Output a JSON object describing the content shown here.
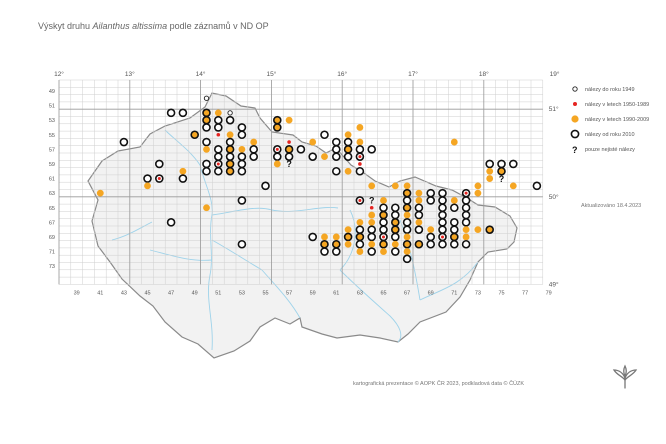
{
  "title": {
    "prefix": "Výskyt druhu",
    "species": "Ailanthus altissima",
    "suffix": "podle záznamů v ND OP"
  },
  "map": {
    "top_meridian_labels": [
      "12°",
      "13°",
      "14°",
      "15°",
      "16°",
      "17°",
      "18°",
      "19°"
    ],
    "right_parallel_labels": [
      "51°",
      "50°",
      "49°"
    ],
    "left_row_labels": [
      "49",
      "51",
      "53",
      "55",
      "57",
      "59",
      "61",
      "63",
      "65",
      "67",
      "69",
      "71",
      "73"
    ],
    "bottom_col_labels": [
      "39",
      "41",
      "43",
      "45",
      "47",
      "49",
      "51",
      "53",
      "55",
      "57",
      "59",
      "61",
      "63",
      "65",
      "67",
      "69",
      "71",
      "73",
      "75",
      "77",
      "79"
    ]
  },
  "legend": [
    {
      "id": "pre1949",
      "label": "nálezy do roku 1949",
      "symbol": "small-ring"
    },
    {
      "id": "1950_1989",
      "label": "nálezy v letech 1950-1989",
      "symbol": "red-dot",
      "color": "#e52421"
    },
    {
      "id": "1990_2009",
      "label": "nálezy v letech 1990-2009",
      "symbol": "orange-dot",
      "color": "#f5a623"
    },
    {
      "id": "since2010",
      "label": "nálezy od roku 2010",
      "symbol": "black-ring"
    },
    {
      "id": "uncertain",
      "label": "pouze nejisté nálezy",
      "symbol": "question-mark"
    }
  ],
  "updated_label": "Aktualizováno 18.4.2023",
  "credit": "kartografická prezentace © AOPK ČR 2023, podkladová data © ČÚZK",
  "occurrences": [
    {
      "col": 50,
      "row": 50,
      "t": "small"
    },
    {
      "col": 47,
      "row": 52,
      "t": "ring"
    },
    {
      "col": 48,
      "row": 52,
      "t": "ring"
    },
    {
      "col": 50,
      "row": 52,
      "t": "ring-o"
    },
    {
      "col": 51,
      "row": 52,
      "t": "orange"
    },
    {
      "col": 52,
      "row": 52,
      "t": "small"
    },
    {
      "col": 50,
      "row": 53,
      "t": "ring-o"
    },
    {
      "col": 51,
      "row": 53,
      "t": "ring"
    },
    {
      "col": 52,
      "row": 53,
      "t": "ring"
    },
    {
      "col": 56,
      "row": 53,
      "t": "ring-o"
    },
    {
      "col": 57,
      "row": 53,
      "t": "orange"
    },
    {
      "col": 50,
      "row": 54,
      "t": "ring"
    },
    {
      "col": 51,
      "row": 54,
      "t": "ring"
    },
    {
      "col": 53,
      "row": 54,
      "t": "ring"
    },
    {
      "col": 56,
      "row": 54,
      "t": "ring-o"
    },
    {
      "col": 63,
      "row": 54,
      "t": "orange"
    },
    {
      "col": 49,
      "row": 55,
      "t": "ring-o"
    },
    {
      "col": 51,
      "row": 55,
      "t": "red"
    },
    {
      "col": 52,
      "row": 55,
      "t": "orange"
    },
    {
      "col": 53,
      "row": 55,
      "t": "ring"
    },
    {
      "col": 60,
      "row": 55,
      "t": "ring"
    },
    {
      "col": 62,
      "row": 55,
      "t": "orange"
    },
    {
      "col": 43,
      "row": 56,
      "t": "ring"
    },
    {
      "col": 50,
      "row": 56,
      "t": "ring"
    },
    {
      "col": 52,
      "row": 56,
      "t": "ring"
    },
    {
      "col": 54,
      "row": 56,
      "t": "orange"
    },
    {
      "col": 57,
      "row": 56,
      "t": "red"
    },
    {
      "col": 59,
      "row": 56,
      "t": "orange"
    },
    {
      "col": 61,
      "row": 56,
      "t": "ring"
    },
    {
      "col": 62,
      "row": 56,
      "t": "ring"
    },
    {
      "col": 63,
      "row": 56,
      "t": "orange"
    },
    {
      "col": 71,
      "row": 56,
      "t": "orange"
    },
    {
      "col": 50,
      "row": 57,
      "t": "orange"
    },
    {
      "col": 51,
      "row": 57,
      "t": "ring"
    },
    {
      "col": 52,
      "row": 57,
      "t": "ring-o"
    },
    {
      "col": 53,
      "row": 57,
      "t": "orange"
    },
    {
      "col": 54,
      "row": 57,
      "t": "ring"
    },
    {
      "col": 56,
      "row": 57,
      "t": "ring-r"
    },
    {
      "col": 57,
      "row": 57,
      "t": "ring-o"
    },
    {
      "col": 58,
      "row": 57,
      "t": "ring"
    },
    {
      "col": 61,
      "row": 57,
      "t": "ring"
    },
    {
      "col": 62,
      "row": 57,
      "t": "ring-o"
    },
    {
      "col": 63,
      "row": 57,
      "t": "ring"
    },
    {
      "col": 64,
      "row": 57,
      "t": "ring"
    },
    {
      "col": 51,
      "row": 58,
      "t": "ring"
    },
    {
      "col": 52,
      "row": 58,
      "t": "ring"
    },
    {
      "col": 53,
      "row": 58,
      "t": "ring"
    },
    {
      "col": 54,
      "row": 58,
      "t": "ring"
    },
    {
      "col": 56,
      "row": 58,
      "t": "ring"
    },
    {
      "col": 57,
      "row": 58,
      "t": "ring"
    },
    {
      "col": 59,
      "row": 58,
      "t": "ring"
    },
    {
      "col": 60,
      "row": 58,
      "t": "orange"
    },
    {
      "col": 61,
      "row": 58,
      "t": "ring"
    },
    {
      "col": 62,
      "row": 58,
      "t": "ring"
    },
    {
      "col": 63,
      "row": 58,
      "t": "ring-r"
    },
    {
      "col": 46,
      "row": 59,
      "t": "ring"
    },
    {
      "col": 50,
      "row": 59,
      "t": "ring"
    },
    {
      "col": 51,
      "row": 59,
      "t": "ring-r"
    },
    {
      "col": 52,
      "row": 59,
      "t": "ring-o"
    },
    {
      "col": 53,
      "row": 59,
      "t": "ring"
    },
    {
      "col": 56,
      "row": 59,
      "t": "orange"
    },
    {
      "col": 57,
      "row": 59,
      "t": "q"
    },
    {
      "col": 63,
      "row": 59,
      "t": "red"
    },
    {
      "col": 74,
      "row": 59,
      "t": "ring"
    },
    {
      "col": 75,
      "row": 59,
      "t": "ring"
    },
    {
      "col": 76,
      "row": 59,
      "t": "ring"
    },
    {
      "col": 48,
      "row": 60,
      "t": "orange"
    },
    {
      "col": 50,
      "row": 60,
      "t": "ring"
    },
    {
      "col": 51,
      "row": 60,
      "t": "ring"
    },
    {
      "col": 52,
      "row": 60,
      "t": "ring-o"
    },
    {
      "col": 53,
      "row": 60,
      "t": "ring"
    },
    {
      "col": 61,
      "row": 60,
      "t": "ring"
    },
    {
      "col": 62,
      "row": 60,
      "t": "orange"
    },
    {
      "col": 63,
      "row": 60,
      "t": "ring"
    },
    {
      "col": 74,
      "row": 60,
      "t": "orange"
    },
    {
      "col": 75,
      "row": 60,
      "t": "ring-o"
    },
    {
      "col": 45,
      "row": 61,
      "t": "ring"
    },
    {
      "col": 46,
      "row": 61,
      "t": "ring-r"
    },
    {
      "col": 48,
      "row": 61,
      "t": "ring"
    },
    {
      "col": 74,
      "row": 61,
      "t": "orange"
    },
    {
      "col": 75,
      "row": 61,
      "t": "q"
    },
    {
      "col": 45,
      "row": 62,
      "t": "orange"
    },
    {
      "col": 55,
      "row": 62,
      "t": "ring"
    },
    {
      "col": 64,
      "row": 62,
      "t": "orange"
    },
    {
      "col": 66,
      "row": 62,
      "t": "orange"
    },
    {
      "col": 67,
      "row": 62,
      "t": "orange"
    },
    {
      "col": 73,
      "row": 62,
      "t": "orange"
    },
    {
      "col": 76,
      "row": 62,
      "t": "orange"
    },
    {
      "col": 78,
      "row": 62,
      "t": "ring"
    },
    {
      "col": 41,
      "row": 63,
      "t": "orange"
    },
    {
      "col": 67,
      "row": 63,
      "t": "ring-o"
    },
    {
      "col": 68,
      "row": 63,
      "t": "orange"
    },
    {
      "col": 69,
      "row": 63,
      "t": "ring"
    },
    {
      "col": 70,
      "row": 63,
      "t": "ring"
    },
    {
      "col": 72,
      "row": 63,
      "t": "ring-r"
    },
    {
      "col": 73,
      "row": 63,
      "t": "orange"
    },
    {
      "col": 53,
      "row": 64,
      "t": "ring"
    },
    {
      "col": 63,
      "row": 64,
      "t": "ring-r"
    },
    {
      "col": 64,
      "row": 64,
      "t": "q"
    },
    {
      "col": 65,
      "row": 64,
      "t": "orange"
    },
    {
      "col": 67,
      "row": 64,
      "t": "ring"
    },
    {
      "col": 68,
      "row": 64,
      "t": "orange"
    },
    {
      "col": 69,
      "row": 64,
      "t": "ring"
    },
    {
      "col": 70,
      "row": 64,
      "t": "ring"
    },
    {
      "col": 71,
      "row": 64,
      "t": "orange"
    },
    {
      "col": 72,
      "row": 64,
      "t": "ring"
    },
    {
      "col": 50,
      "row": 65,
      "t": "orange"
    },
    {
      "col": 64,
      "row": 65,
      "t": "red"
    },
    {
      "col": 65,
      "row": 65,
      "t": "ring"
    },
    {
      "col": 66,
      "row": 65,
      "t": "ring"
    },
    {
      "col": 67,
      "row": 65,
      "t": "ring-o"
    },
    {
      "col": 68,
      "row": 65,
      "t": "ring"
    },
    {
      "col": 70,
      "row": 65,
      "t": "ring"
    },
    {
      "col": 71,
      "row": 65,
      "t": "ring"
    },
    {
      "col": 72,
      "row": 65,
      "t": "ring"
    },
    {
      "col": 64,
      "row": 66,
      "t": "orange"
    },
    {
      "col": 65,
      "row": 66,
      "t": "ring-o"
    },
    {
      "col": 66,
      "row": 66,
      "t": "ring"
    },
    {
      "col": 67,
      "row": 66,
      "t": "orange"
    },
    {
      "col": 68,
      "row": 66,
      "t": "ring"
    },
    {
      "col": 70,
      "row": 66,
      "t": "ring"
    },
    {
      "col": 72,
      "row": 66,
      "t": "ring"
    },
    {
      "col": 47,
      "row": 67,
      "t": "ring"
    },
    {
      "col": 63,
      "row": 67,
      "t": "orange"
    },
    {
      "col": 64,
      "row": 67,
      "t": "orange"
    },
    {
      "col": 65,
      "row": 67,
      "t": "ring"
    },
    {
      "col": 66,
      "row": 67,
      "t": "ring-o"
    },
    {
      "col": 67,
      "row": 67,
      "t": "ring"
    },
    {
      "col": 68,
      "row": 67,
      "t": "orange"
    },
    {
      "col": 70,
      "row": 67,
      "t": "ring"
    },
    {
      "col": 71,
      "row": 67,
      "t": "ring"
    },
    {
      "col": 72,
      "row": 67,
      "t": "ring"
    },
    {
      "col": 62,
      "row": 68,
      "t": "orange"
    },
    {
      "col": 63,
      "row": 68,
      "t": "ring"
    },
    {
      "col": 64,
      "row": 68,
      "t": "ring"
    },
    {
      "col": 65,
      "row": 68,
      "t": "ring"
    },
    {
      "col": 66,
      "row": 68,
      "t": "ring-o"
    },
    {
      "col": 67,
      "row": 68,
      "t": "ring"
    },
    {
      "col": 68,
      "row": 68,
      "t": "ring"
    },
    {
      "col": 69,
      "row": 68,
      "t": "orange"
    },
    {
      "col": 70,
      "row": 68,
      "t": "ring"
    },
    {
      "col": 71,
      "row": 68,
      "t": "ring"
    },
    {
      "col": 72,
      "row": 68,
      "t": "orange"
    },
    {
      "col": 73,
      "row": 68,
      "t": "orange"
    },
    {
      "col": 74,
      "row": 68,
      "t": "ring-o"
    },
    {
      "col": 59,
      "row": 69,
      "t": "ring"
    },
    {
      "col": 60,
      "row": 69,
      "t": "orange"
    },
    {
      "col": 61,
      "row": 69,
      "t": "orange"
    },
    {
      "col": 62,
      "row": 69,
      "t": "ring-o"
    },
    {
      "col": 63,
      "row": 69,
      "t": "ring-o"
    },
    {
      "col": 64,
      "row": 69,
      "t": "ring"
    },
    {
      "col": 65,
      "row": 69,
      "t": "ring-r"
    },
    {
      "col": 66,
      "row": 69,
      "t": "ring"
    },
    {
      "col": 67,
      "row": 69,
      "t": "orange"
    },
    {
      "col": 69,
      "row": 69,
      "t": "ring"
    },
    {
      "col": 70,
      "row": 69,
      "t": "ring-r"
    },
    {
      "col": 71,
      "row": 69,
      "t": "ring-o"
    },
    {
      "col": 72,
      "row": 69,
      "t": "orange"
    },
    {
      "col": 53,
      "row": 70,
      "t": "ring"
    },
    {
      "col": 60,
      "row": 70,
      "t": "ring-o"
    },
    {
      "col": 61,
      "row": 70,
      "t": "ring-o"
    },
    {
      "col": 62,
      "row": 70,
      "t": "orange"
    },
    {
      "col": 63,
      "row": 70,
      "t": "ring"
    },
    {
      "col": 64,
      "row": 70,
      "t": "orange"
    },
    {
      "col": 65,
      "row": 70,
      "t": "ring-o"
    },
    {
      "col": 66,
      "row": 70,
      "t": "orange"
    },
    {
      "col": 67,
      "row": 70,
      "t": "ring-o"
    },
    {
      "col": 68,
      "row": 70,
      "t": "ring-o"
    },
    {
      "col": 69,
      "row": 70,
      "t": "ring"
    },
    {
      "col": 70,
      "row": 70,
      "t": "ring"
    },
    {
      "col": 71,
      "row": 70,
      "t": "ring"
    },
    {
      "col": 72,
      "row": 70,
      "t": "ring"
    },
    {
      "col": 60,
      "row": 71,
      "t": "ring"
    },
    {
      "col": 61,
      "row": 71,
      "t": "ring"
    },
    {
      "col": 63,
      "row": 71,
      "t": "orange"
    },
    {
      "col": 64,
      "row": 71,
      "t": "ring"
    },
    {
      "col": 65,
      "row": 71,
      "t": "orange"
    },
    {
      "col": 66,
      "row": 71,
      "t": "ring"
    },
    {
      "col": 67,
      "row": 71,
      "t": "orange"
    },
    {
      "col": 67,
      "row": 72,
      "t": "ring"
    }
  ]
}
